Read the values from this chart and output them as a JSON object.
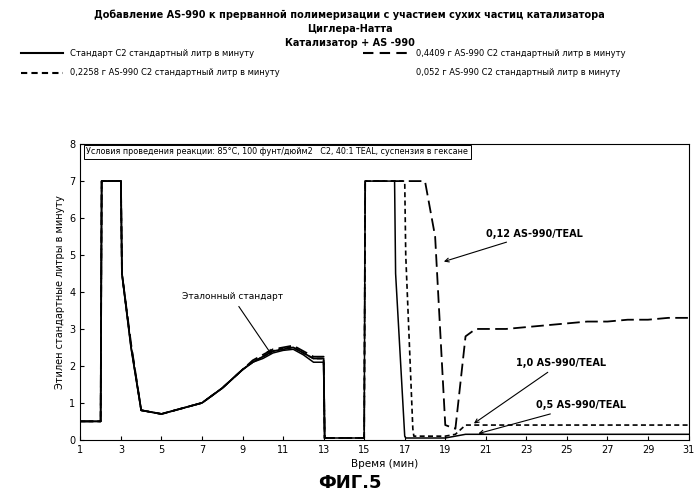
{
  "title_line1": "Добавление AS-990 к прерванной полимеризации с участием сухих частиц катализатора",
  "title_line2": "Циглера-Натта",
  "title_line3": "Катализатор + AS -990",
  "xlabel": "Время (мин)",
  "ylabel": "Этилен стандартные литры в минуту",
  "fig_label": "ФИГ.5",
  "condition_text1": "Условия проведения реакции: 85°С, 100 фунт/дюйм2",
  "condition_text2": "C2, 40:1 TEAL, суспензия в гексане",
  "annotation_standard": "Эталонный стандарт",
  "annotation_012": "0,12 AS-990/TEAL",
  "annotation_10": "1,0 AS-990/TEAL",
  "annotation_05": "0,5 AS-990/TEAL",
  "legend_entries": [
    "Стандарт C2 стандартный литр в минуту",
    "0,4409 г AS-990 C2 стандартный литр в минуту",
    "0,2258 г AS-990 C2 стандартный литр в минуту",
    "0,052 г AS-990 C2 стандартный литр в минуту"
  ],
  "xlim": [
    1,
    31
  ],
  "ylim": [
    0,
    8
  ],
  "xticks": [
    1,
    3,
    5,
    7,
    9,
    11,
    13,
    15,
    17,
    19,
    21,
    23,
    25,
    27,
    29,
    31
  ],
  "yticks": [
    0,
    1,
    2,
    3,
    4,
    5,
    6,
    7,
    8
  ],
  "background_color": "#ffffff",
  "standard_x": [
    1,
    2,
    2.05,
    3,
    3.05,
    3.5,
    4,
    5,
    6,
    7,
    8,
    9,
    9.5,
    10,
    10.5,
    11,
    11.5,
    12,
    12.5,
    13,
    13.05
  ],
  "standard_y": [
    0.5,
    0.5,
    7.0,
    7.0,
    4.5,
    2.5,
    0.8,
    0.7,
    0.85,
    1.0,
    1.4,
    1.9,
    2.1,
    2.25,
    2.4,
    2.45,
    2.5,
    2.35,
    2.2,
    2.2,
    0.05
  ],
  "line2_x": [
    1,
    2,
    2.05,
    3,
    3.05,
    3.5,
    4,
    5,
    6,
    7,
    8,
    9,
    9.5,
    10,
    10.5,
    11,
    11.5,
    12,
    12.5,
    13,
    13.05,
    14,
    15,
    15.05,
    16,
    17,
    17.05,
    18,
    18.5,
    19,
    19.5,
    20,
    20.5,
    21,
    22,
    23,
    24,
    25,
    26,
    27,
    28,
    29,
    30,
    31
  ],
  "line2_y": [
    0.5,
    0.5,
    7.0,
    7.0,
    4.5,
    2.6,
    0.8,
    0.7,
    0.85,
    1.0,
    1.4,
    1.9,
    2.15,
    2.3,
    2.45,
    2.5,
    2.55,
    2.4,
    2.25,
    2.25,
    0.05,
    0.05,
    0.05,
    7.0,
    7.0,
    7.0,
    7.0,
    7.0,
    5.5,
    0.4,
    0.3,
    2.8,
    3.0,
    3.0,
    3.0,
    3.05,
    3.1,
    3.15,
    3.2,
    3.2,
    3.25,
    3.25,
    3.3,
    3.3
  ],
  "line3_x": [
    1,
    2,
    2.05,
    3,
    3.05,
    3.5,
    4,
    5,
    6,
    7,
    8,
    9,
    9.5,
    10,
    10.5,
    11,
    11.5,
    12,
    12.5,
    13,
    13.05,
    14,
    15,
    15.05,
    16,
    17,
    17.05,
    17.4,
    17.45,
    18,
    19,
    19.5,
    20,
    21,
    22,
    23,
    24,
    25,
    26,
    27,
    28,
    29,
    30,
    31
  ],
  "line3_y": [
    0.5,
    0.5,
    7.0,
    7.0,
    4.5,
    2.55,
    0.8,
    0.7,
    0.85,
    1.0,
    1.4,
    1.9,
    2.1,
    2.25,
    2.4,
    2.48,
    2.5,
    2.35,
    2.2,
    2.2,
    0.05,
    0.05,
    0.05,
    7.0,
    7.0,
    7.0,
    5.0,
    0.3,
    0.1,
    0.1,
    0.1,
    0.15,
    0.4,
    0.4,
    0.4,
    0.4,
    0.4,
    0.4,
    0.4,
    0.4,
    0.4,
    0.4,
    0.4,
    0.4
  ],
  "line4_x": [
    1,
    2,
    2.05,
    3,
    3.05,
    3.5,
    4,
    5,
    6,
    7,
    8,
    9,
    9.5,
    10,
    10.5,
    11,
    11.5,
    12,
    12.5,
    13,
    13.05,
    14,
    15,
    15.05,
    16,
    16.5,
    16.55,
    17,
    17.05,
    18,
    19,
    19.5,
    20,
    21,
    22,
    23,
    24,
    25,
    26,
    27,
    28,
    29,
    30,
    31
  ],
  "line4_y": [
    0.5,
    0.5,
    7.0,
    7.0,
    4.5,
    2.5,
    0.8,
    0.7,
    0.85,
    1.0,
    1.4,
    1.9,
    2.1,
    2.2,
    2.35,
    2.42,
    2.45,
    2.3,
    2.1,
    2.1,
    0.05,
    0.05,
    0.05,
    7.0,
    7.0,
    7.0,
    4.5,
    0.1,
    0.05,
    0.05,
    0.05,
    0.1,
    0.15,
    0.15,
    0.15,
    0.15,
    0.15,
    0.15,
    0.15,
    0.15,
    0.15,
    0.15,
    0.15,
    0.15
  ]
}
